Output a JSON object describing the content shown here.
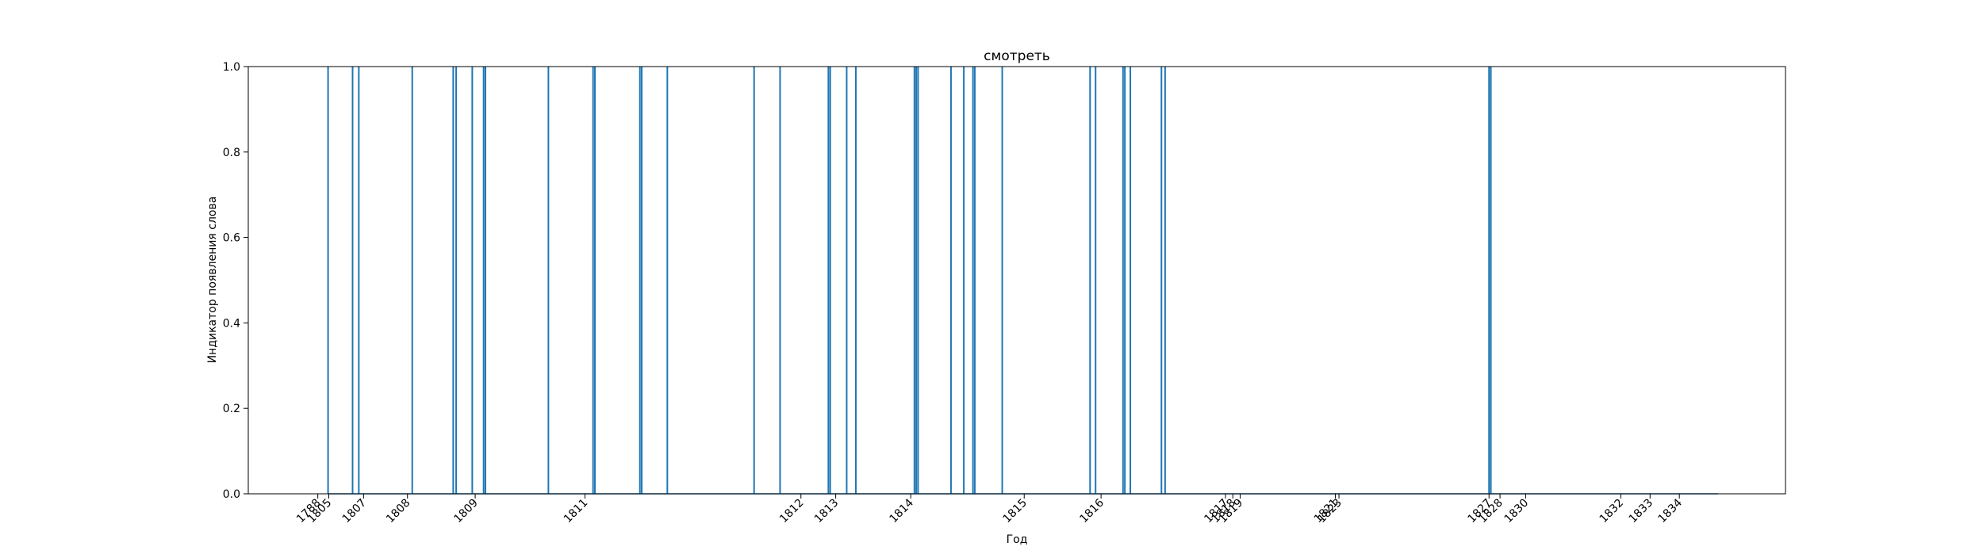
{
  "chart_data": {
    "type": "bar",
    "title": "смотреть",
    "xlabel": "Год",
    "ylabel": "Индикатор появления слова",
    "ylim": [
      0,
      1.0
    ],
    "yticks": [
      "0.0",
      "0.2",
      "0.4",
      "0.6",
      "0.8",
      "1.0"
    ],
    "xlim": [
      1797.3,
      1839.3
    ],
    "x_tick_labels": [
      {
        "label": "1788",
        "pos": 1799.2
      },
      {
        "label": "1805",
        "pos": 1799.5
      },
      {
        "label": "1807",
        "pos": 1800.45
      },
      {
        "label": "1808",
        "pos": 1801.65
      },
      {
        "label": "1809",
        "pos": 1803.5
      },
      {
        "label": "1811",
        "pos": 1806.5
      },
      {
        "label": "1812",
        "pos": 1812.4
      },
      {
        "label": "1813",
        "pos": 1813.35
      },
      {
        "label": "1814",
        "pos": 1815.4
      },
      {
        "label": "1815",
        "pos": 1818.5
      },
      {
        "label": "1816",
        "pos": 1820.6
      },
      {
        "label": "1817",
        "pos": 1824.0
      },
      {
        "label": "1818",
        "pos": 1824.2
      },
      {
        "label": "1819",
        "pos": 1824.4
      },
      {
        "label": "1821",
        "pos": 1827.0
      },
      {
        "label": "1823",
        "pos": 1827.1
      },
      {
        "label": "1827",
        "pos": 1831.2
      },
      {
        "label": "1828",
        "pos": 1831.5
      },
      {
        "label": "1830",
        "pos": 1832.2
      },
      {
        "label": "1832",
        "pos": 1834.8
      },
      {
        "label": "1833",
        "pos": 1835.6
      },
      {
        "label": "1834",
        "pos": 1836.4
      }
    ],
    "occurrences": [
      1799.48,
      1800.15,
      1800.32,
      1801.78,
      1802.9,
      1802.98,
      1803.42,
      1803.73,
      1803.78,
      1805.5,
      1806.72,
      1806.77,
      1808.0,
      1808.05,
      1808.75,
      1811.12,
      1811.83,
      1813.15,
      1813.2,
      1813.65,
      1813.9,
      1815.5,
      1815.55,
      1815.6,
      1816.5,
      1816.85,
      1817.1,
      1817.15,
      1817.9,
      1820.3,
      1820.45,
      1821.2,
      1821.25,
      1821.4,
      1822.25,
      1822.35,
      1831.2,
      1831.25
    ],
    "values": [
      1,
      1,
      1,
      1,
      1,
      1,
      1,
      1,
      1,
      1,
      1,
      1,
      1,
      1,
      1,
      1,
      1,
      1,
      1,
      1,
      1,
      1,
      1,
      1,
      1,
      1,
      1,
      1,
      1,
      1,
      1,
      1,
      1,
      1,
      1,
      1,
      1,
      1
    ],
    "line_color": "#1f77b4",
    "grid": false,
    "legend": "none"
  }
}
